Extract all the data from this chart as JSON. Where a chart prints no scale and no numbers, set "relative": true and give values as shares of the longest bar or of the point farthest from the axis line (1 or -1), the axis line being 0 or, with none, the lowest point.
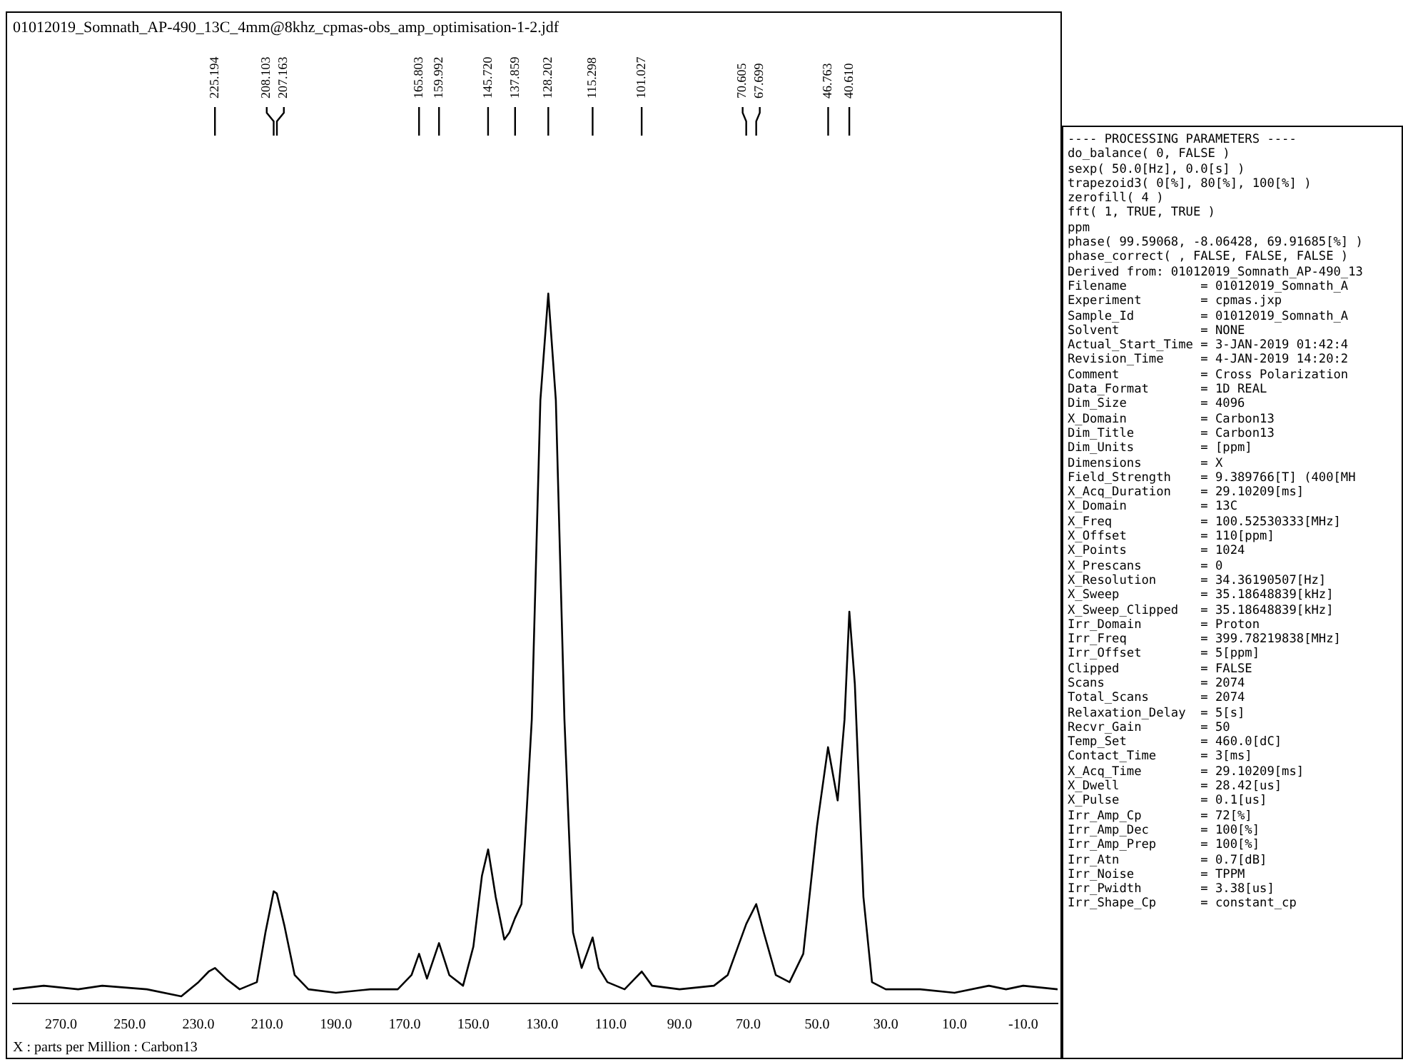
{
  "chart_data": {
    "type": "line",
    "title": "01012019_Somnath_AP-490_13C_4mm@8khz_cpmas-obs_amp_optimisation-1-2.jdf",
    "xlabel": "X : parts per Million : Carbon13",
    "relative": true,
    "marker": "none",
    "color": "#000000",
    "x": [
      284,
      275,
      265,
      258,
      245,
      235,
      230,
      227,
      225.2,
      222,
      218,
      213,
      210.5,
      208.1,
      207.2,
      205,
      202,
      198,
      190,
      180,
      172,
      168,
      165.8,
      163.5,
      160,
      157,
      153,
      150,
      147.5,
      145.7,
      143.5,
      141,
      139.5,
      137.9,
      136,
      133,
      130.5,
      128.2,
      126,
      123.5,
      121,
      118.5,
      117,
      115.3,
      113.5,
      111,
      106,
      103,
      101,
      98,
      90,
      80,
      76,
      73,
      70.6,
      67.7,
      65.5,
      62,
      58,
      54,
      50,
      46.8,
      44,
      42,
      40.6,
      39,
      36.5,
      34,
      30,
      20,
      10,
      0,
      -5,
      -10,
      -20
    ],
    "values": [
      0.02,
      0.025,
      0.02,
      0.025,
      0.02,
      0.01,
      0.03,
      0.045,
      0.05,
      0.035,
      0.02,
      0.03,
      0.1,
      0.158,
      0.155,
      0.11,
      0.04,
      0.02,
      0.015,
      0.02,
      0.02,
      0.04,
      0.07,
      0.035,
      0.085,
      0.04,
      0.025,
      0.08,
      0.18,
      0.217,
      0.15,
      0.09,
      0.1,
      0.12,
      0.14,
      0.4,
      0.85,
      1,
      0.85,
      0.4,
      0.1,
      0.05,
      0.07,
      0.093,
      0.05,
      0.03,
      0.02,
      0.035,
      0.045,
      0.025,
      0.02,
      0.025,
      0.04,
      0.08,
      0.112,
      0.14,
      0.1,
      0.04,
      0.03,
      0.07,
      0.25,
      0.361,
      0.286,
      0.4,
      0.552,
      0.45,
      0.15,
      0.03,
      0.02,
      0.02,
      0.015,
      0.025,
      0.02,
      0.025,
      0.02
    ],
    "xlim": [
      284,
      -20
    ],
    "xticks": [
      {
        "value": 270,
        "label": "270.0"
      },
      {
        "value": 250,
        "label": "250.0"
      },
      {
        "value": 230,
        "label": "230.0"
      },
      {
        "value": 210,
        "label": "210.0"
      },
      {
        "value": 190,
        "label": "190.0"
      },
      {
        "value": 170,
        "label": "170.0"
      },
      {
        "value": 150,
        "label": "150.0"
      },
      {
        "value": 130,
        "label": "130.0"
      },
      {
        "value": 110,
        "label": "110.0"
      },
      {
        "value": 90,
        "label": "90.0"
      },
      {
        "value": 70,
        "label": "70.0"
      },
      {
        "value": 50,
        "label": "50.0"
      },
      {
        "value": 30,
        "label": "30.0"
      },
      {
        "value": 10,
        "label": "10.0"
      },
      {
        "value": -10,
        "label": "-10.0"
      }
    ],
    "annotations": [
      {
        "text": "225.194",
        "x": 225.194
      },
      {
        "text": "208.103",
        "x": 208.103
      },
      {
        "text": "207.163",
        "x": 207.163
      },
      {
        "text": "165.803",
        "x": 165.803
      },
      {
        "text": "159.992",
        "x": 159.992
      },
      {
        "text": "145.720",
        "x": 145.72
      },
      {
        "text": "137.859",
        "x": 137.859
      },
      {
        "text": "128.202",
        "x": 128.202
      },
      {
        "text": "115.298",
        "x": 115.298
      },
      {
        "text": "101.027",
        "x": 101.027
      },
      {
        "text": "70.605",
        "x": 70.605
      },
      {
        "text": "67.699",
        "x": 67.699
      },
      {
        "text": "46.763",
        "x": 46.763
      },
      {
        "text": "40.610",
        "x": 40.61
      },
      "---- PROCESSING PARAMETERS ----",
      "do_balance( 0, FALSE )",
      "sexp( 50.0[Hz], 0.0[s] )",
      "trapezoid3( 0[%], 80[%], 100[%] )",
      "zerofill( 4 )",
      "fft( 1, TRUE, TRUE )",
      "ppm",
      "phase( 99.59068, -8.06428, 69.91685[%] )",
      "phase_correct( , FALSE, FALSE, FALSE )",
      "Derived from: 01012019_Somnath_AP-490_13",
      "Filename          = 01012019_Somnath_A",
      "Experiment        = cpmas.jxp",
      "Sample_Id         = 01012019_Somnath_A",
      "Solvent           = NONE",
      "Actual_Start_Time = 3-JAN-2019 01:42:4",
      "Revision_Time     = 4-JAN-2019 14:20:2",
      "Comment           = Cross Polarization",
      "Data_Format       = 1D REAL",
      "Dim_Size          = 4096",
      "X_Domain          = Carbon13",
      "Dim_Title         = Carbon13",
      "Dim_Units         = [ppm]",
      "Dimensions        = X",
      "Field_Strength    = 9.389766[T] (400[MH",
      "X_Acq_Duration    = 29.10209[ms]",
      "X_Domain          = 13C",
      "X_Freq            = 100.52530333[MHz]",
      "X_Offset          = 110[ppm]",
      "X_Points          = 1024",
      "X_Prescans        = 0",
      "X_Resolution      = 34.36190507[Hz]",
      "X_Sweep           = 35.18648839[kHz]",
      "X_Sweep_Clipped   = 35.18648839[kHz]",
      "Irr_Domain        = Proton",
      "Irr_Freq          = 399.78219838[MHz]",
      "Irr_Offset        = 5[ppm]",
      "Clipped           = FALSE",
      "Scans             = 2074",
      "Total_Scans       = 2074",
      "Relaxation_Delay  = 5[s]",
      "Recvr_Gain        = 50",
      "Temp_Set          = 460.0[dC]",
      "Contact_Time      = 3[ms]",
      "X_Acq_Time        = 29.10209[ms]",
      "X_Dwell           = 28.42[us]",
      "X_Pulse           = 0.1[us]",
      "Irr_Amp_Cp        = 72[%]",
      "Irr_Amp_Dec       = 100[%]",
      "Irr_Amp_Prep      = 100[%]",
      "Irr_Atn           = 0.7[dB]",
      "Irr_Noise         = TPPM",
      "Irr_Pwidth        = 3.38[us]",
      "Irr_Shape_Cp      = constant_cp"
    ]
  }
}
